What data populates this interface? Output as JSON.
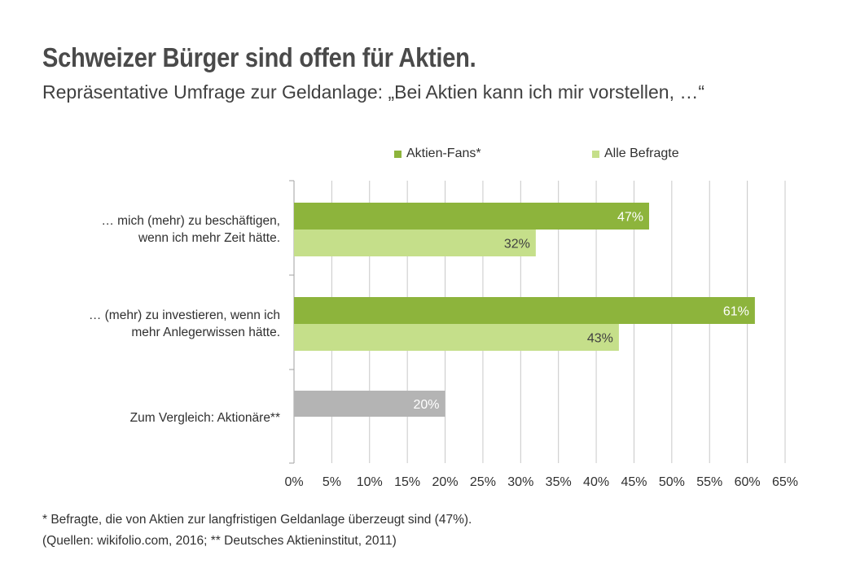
{
  "title": "Schweizer  Bürger sind offen für Aktien.",
  "subtitle": "Repräsentative Umfrage zur Geldanlage: „Bei Aktien kann ich mir vorstellen, …“",
  "legend": {
    "series1": "Aktien-Fans*",
    "series2": "Alle Befragte"
  },
  "categories": {
    "c1_line1": "… mich (mehr) zu beschäftigen,",
    "c1_line2": "wenn ich mehr Zeit hätte.",
    "c2_line1": "… (mehr) zu investieren, wenn ich",
    "c2_line2": "mehr Anlegerwissen hätte.",
    "c3_line1": "Zum Vergleich: Aktionäre**"
  },
  "footnotes": {
    "line1": "* Befragte, die von Aktien zur langfristigen Geldanlage überzeugt sind (47%).",
    "line2": "(Quellen: wikifolio.com, 2016; ** Deutsches Aktieninstitut, 2011)"
  },
  "colors": {
    "fans": "#8db43c",
    "all": "#c5df8a",
    "compare": "#b4b4b4",
    "grid": "#c8c8c8"
  },
  "chart_data": {
    "type": "bar",
    "orientation": "horizontal",
    "categories": [
      "… mich (mehr) zu beschäftigen, wenn ich mehr Zeit hätte.",
      "… (mehr) zu investieren, wenn ich mehr Anlegerwissen hätte.",
      "Zum Vergleich: Aktionäre**"
    ],
    "series": [
      {
        "name": "Aktien-Fans*",
        "values": [
          47,
          61,
          null
        ]
      },
      {
        "name": "Alle Befragte",
        "values": [
          32,
          43,
          null
        ]
      }
    ],
    "comparison": {
      "category": "Zum Vergleich: Aktionäre**",
      "value": 20
    },
    "data_labels": [
      "47%",
      "32%",
      "61%",
      "43%",
      "20%"
    ],
    "xlim": [
      0,
      65
    ],
    "xticks": [
      0,
      5,
      10,
      15,
      20,
      25,
      30,
      35,
      40,
      45,
      50,
      55,
      60,
      65
    ],
    "xtick_labels": [
      "0%",
      "5%",
      "10%",
      "15%",
      "20%",
      "25%",
      "30%",
      "35%",
      "40%",
      "45%",
      "50%",
      "55%",
      "60%",
      "65%"
    ],
    "grid": true,
    "legend_position": "top"
  }
}
